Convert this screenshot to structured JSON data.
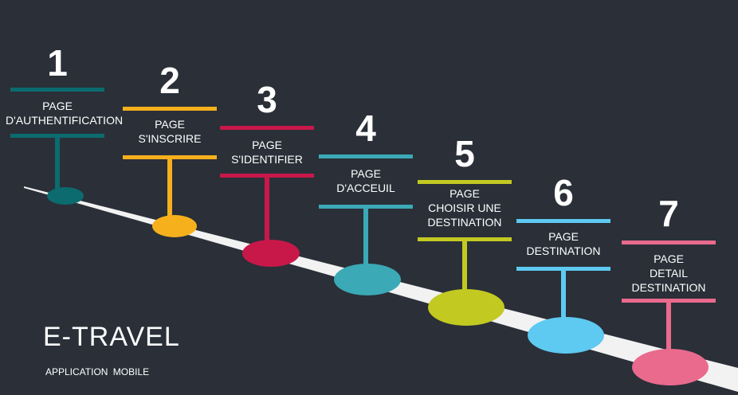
{
  "title": "E-TRAVEL",
  "subtitle": "APPLICATION  MOBILE",
  "steps": [
    {
      "number": "1",
      "label": [
        "PAGE",
        "D'AUTHENTIFICATION"
      ],
      "color": "#0b6b6e"
    },
    {
      "number": "2",
      "label": [
        "PAGE",
        "S'INSCRIRE"
      ],
      "color": "#f6b01c"
    },
    {
      "number": "3",
      "label": [
        "PAGE",
        "S'IDENTIFIER"
      ],
      "color": "#c8184a"
    },
    {
      "number": "4",
      "label": [
        "PAGE",
        "D'ACCEUIL"
      ],
      "color": "#3ba9b6"
    },
    {
      "number": "5",
      "label": [
        "PAGE",
        "CHOISIR UNE",
        "DESTINATION"
      ],
      "color": "#c2c921"
    },
    {
      "number": "6",
      "label": [
        "PAGE",
        "DESTINATION"
      ],
      "color": "#5ec9f1"
    },
    {
      "number": "7",
      "label": [
        "PAGE",
        "DETAIL",
        "DESTINATION"
      ],
      "color": "#e96a8d"
    }
  ]
}
